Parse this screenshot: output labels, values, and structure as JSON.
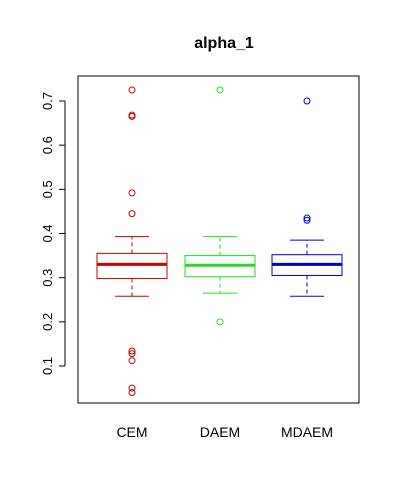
{
  "chart_data": {
    "type": "boxplot",
    "title": "alpha_1",
    "xlabel": "",
    "ylabel": "",
    "ylim": [
      0.02,
      0.75
    ],
    "yticks": [
      0.1,
      0.2,
      0.3,
      0.4,
      0.5,
      0.6,
      0.7
    ],
    "ytick_labels": [
      "0.1",
      "0.2",
      "0.3",
      "0.4",
      "0.5",
      "0.6",
      "0.7"
    ],
    "categories": [
      "CEM",
      "DAEM",
      "MDAEM"
    ],
    "grid": false,
    "legend": "none",
    "boxes": [
      {
        "category": "CEM",
        "color": "#cc0000",
        "whisker_low": 0.258,
        "q1": 0.298,
        "median": 0.33,
        "q3": 0.355,
        "whisker_high": 0.393,
        "outliers": [
          0.725,
          0.668,
          0.665,
          0.492,
          0.445,
          0.134,
          0.128,
          0.112,
          0.05,
          0.04
        ]
      },
      {
        "category": "DAEM",
        "color": "#22dd22",
        "whisker_low": 0.265,
        "q1": 0.302,
        "median": 0.328,
        "q3": 0.35,
        "whisker_high": 0.393,
        "outliers": [
          0.725,
          0.2
        ]
      },
      {
        "category": "MDAEM",
        "color": "#0000cc",
        "whisker_low": 0.258,
        "q1": 0.305,
        "median": 0.33,
        "q3": 0.352,
        "whisker_high": 0.385,
        "outliers": [
          0.7,
          0.435,
          0.43
        ]
      }
    ]
  }
}
